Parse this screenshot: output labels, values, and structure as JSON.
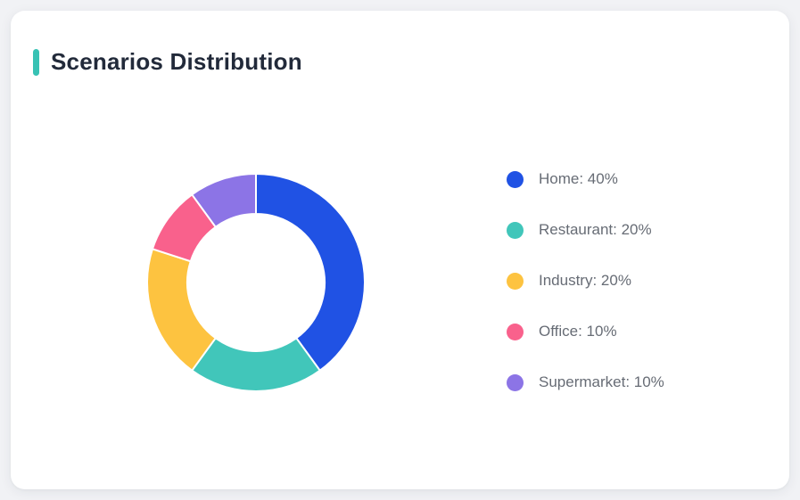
{
  "page": {
    "background": "#F1F2F5"
  },
  "card": {
    "background": "#FFFFFF"
  },
  "header": {
    "title": "Scenarios Distribution",
    "accent_color": "#38C2B4",
    "title_color": "#222A3A"
  },
  "chart_data": {
    "type": "pie",
    "subtype": "donut",
    "title": "Scenarios Distribution",
    "categories": [
      "Home",
      "Restaurant",
      "Industry",
      "Office",
      "Supermarket"
    ],
    "values": [
      40,
      20,
      20,
      10,
      10
    ],
    "unit": "%",
    "colors": [
      "#2052E4",
      "#41C6BA",
      "#FDC340",
      "#F9618C",
      "#8C74E6"
    ],
    "start_angle_deg": 0,
    "direction": "clockwise",
    "inner_radius_ratio": 0.63,
    "segment_border_color": "#FFFFFF",
    "legend_position": "right"
  },
  "legend": {
    "text_color": "#676C75",
    "items": [
      {
        "label": "Home: 40%"
      },
      {
        "label": "Restaurant: 20%"
      },
      {
        "label": "Industry: 20%"
      },
      {
        "label": "Office: 10%"
      },
      {
        "label": "Supermarket: 10%"
      }
    ]
  }
}
